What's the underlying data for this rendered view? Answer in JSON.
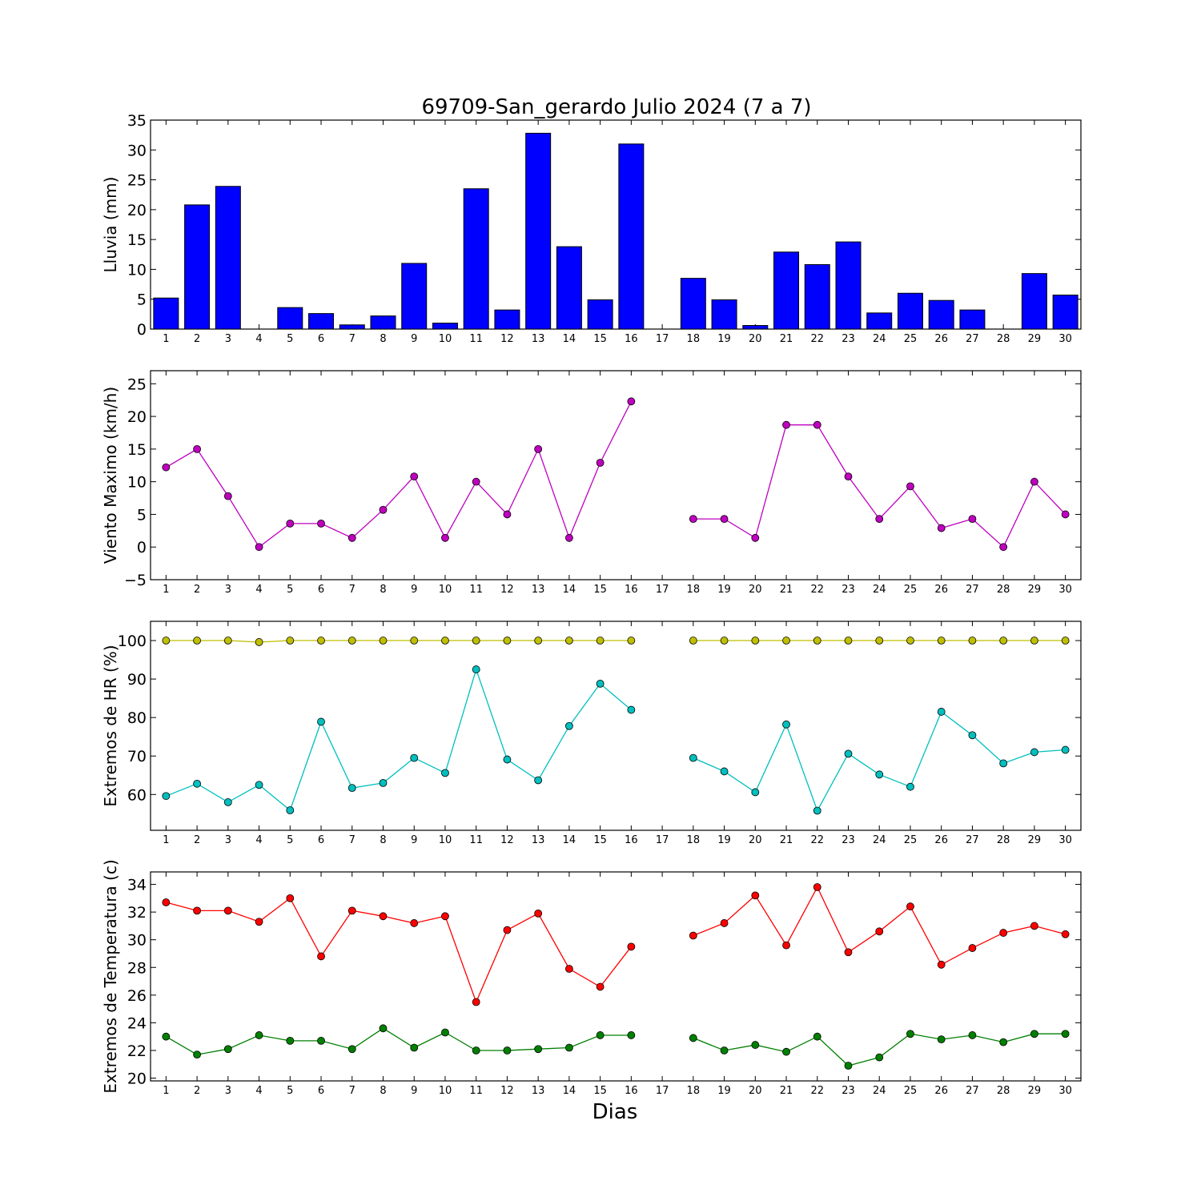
{
  "figure": {
    "title": "69709-San_gerardo Julio 2024  (7 a 7)",
    "xlabel": "Dias"
  },
  "chart_data": [
    {
      "type": "bar",
      "ylabel": "Lluvia (mm)",
      "categories": [
        1,
        2,
        3,
        4,
        5,
        6,
        7,
        8,
        9,
        10,
        11,
        12,
        13,
        14,
        15,
        16,
        17,
        18,
        19,
        20,
        21,
        22,
        23,
        24,
        25,
        26,
        27,
        28,
        29,
        30
      ],
      "ylim": [
        0,
        35
      ],
      "yticks": [
        0,
        5,
        10,
        15,
        20,
        25,
        30,
        35
      ],
      "series": [
        {
          "color": "#0000ff",
          "values": [
            5.2,
            20.8,
            23.9,
            0,
            3.6,
            2.6,
            0.7,
            2.2,
            11.0,
            1.0,
            23.5,
            3.2,
            32.8,
            13.8,
            4.9,
            31.0,
            null,
            8.5,
            4.9,
            0.6,
            12.9,
            10.8,
            14.6,
            2.7,
            6.0,
            4.8,
            3.2,
            0,
            9.3,
            5.7
          ]
        }
      ]
    },
    {
      "type": "line",
      "ylabel": "Viento Maximo (km/h)",
      "categories": [
        1,
        2,
        3,
        4,
        5,
        6,
        7,
        8,
        9,
        10,
        11,
        12,
        13,
        14,
        15,
        16,
        17,
        18,
        19,
        20,
        21,
        22,
        23,
        24,
        25,
        26,
        27,
        28,
        29,
        30
      ],
      "ylim": [
        -5,
        27
      ],
      "yticks": [
        -5,
        0,
        5,
        10,
        15,
        20,
        25
      ],
      "series": [
        {
          "color": "#bf00bf",
          "values": [
            12.2,
            15.0,
            7.8,
            0,
            3.6,
            3.6,
            1.4,
            5.7,
            10.8,
            1.4,
            10.0,
            5.0,
            15.0,
            1.4,
            12.9,
            22.3,
            null,
            4.3,
            4.3,
            1.4,
            18.7,
            18.7,
            10.8,
            4.3,
            9.3,
            2.9,
            4.3,
            0,
            10.0,
            5.0
          ]
        }
      ]
    },
    {
      "type": "line",
      "ylabel": "Extremos de HR (%)",
      "categories": [
        1,
        2,
        3,
        4,
        5,
        6,
        7,
        8,
        9,
        10,
        11,
        12,
        13,
        14,
        15,
        16,
        17,
        18,
        19,
        20,
        21,
        22,
        23,
        24,
        25,
        26,
        27,
        28,
        29,
        30
      ],
      "ylim": [
        50.7,
        105
      ],
      "yticks": [
        60,
        70,
        80,
        90,
        100
      ],
      "series": [
        {
          "color": "#bfbf00",
          "values": [
            100,
            100,
            100,
            99.6,
            100,
            100,
            100,
            100,
            100,
            100,
            100,
            100,
            100,
            100,
            100,
            100,
            null,
            100,
            100,
            100,
            100,
            100,
            100,
            100,
            100,
            100,
            100,
            100,
            100,
            100
          ]
        },
        {
          "color": "#00bfbf",
          "values": [
            59.6,
            62.8,
            58.0,
            62.5,
            55.9,
            78.9,
            61.7,
            63.0,
            69.5,
            65.6,
            92.5,
            69.1,
            63.7,
            77.8,
            88.8,
            82.0,
            null,
            69.5,
            66.0,
            60.6,
            78.2,
            55.8,
            70.6,
            65.2,
            62.0,
            81.5,
            75.4,
            68.1,
            71.0,
            71.6
          ]
        }
      ]
    },
    {
      "type": "line",
      "ylabel": "Extremos de Temperatura (c)",
      "categories": [
        1,
        2,
        3,
        4,
        5,
        6,
        7,
        8,
        9,
        10,
        11,
        12,
        13,
        14,
        15,
        16,
        17,
        18,
        19,
        20,
        21,
        22,
        23,
        24,
        25,
        26,
        27,
        28,
        29,
        30
      ],
      "ylim": [
        19.8,
        34.9
      ],
      "yticks": [
        20,
        22,
        24,
        26,
        28,
        30,
        32,
        34
      ],
      "series": [
        {
          "color": "#ff0000",
          "values": [
            32.7,
            32.1,
            32.1,
            31.3,
            33.0,
            28.8,
            32.1,
            31.7,
            31.2,
            31.7,
            25.5,
            30.7,
            31.9,
            27.9,
            26.6,
            29.5,
            null,
            30.3,
            31.2,
            33.2,
            29.6,
            33.8,
            29.1,
            30.6,
            32.4,
            28.2,
            29.4,
            30.5,
            31.0,
            30.4
          ]
        },
        {
          "color": "#008000",
          "values": [
            23.0,
            21.7,
            22.1,
            23.1,
            22.7,
            22.7,
            22.1,
            23.6,
            22.2,
            23.3,
            22.0,
            22.0,
            22.1,
            22.2,
            23.1,
            23.1,
            null,
            22.9,
            22.0,
            22.4,
            21.9,
            23.0,
            20.9,
            21.5,
            23.2,
            22.8,
            23.1,
            22.6,
            23.2,
            23.2
          ]
        }
      ]
    }
  ]
}
